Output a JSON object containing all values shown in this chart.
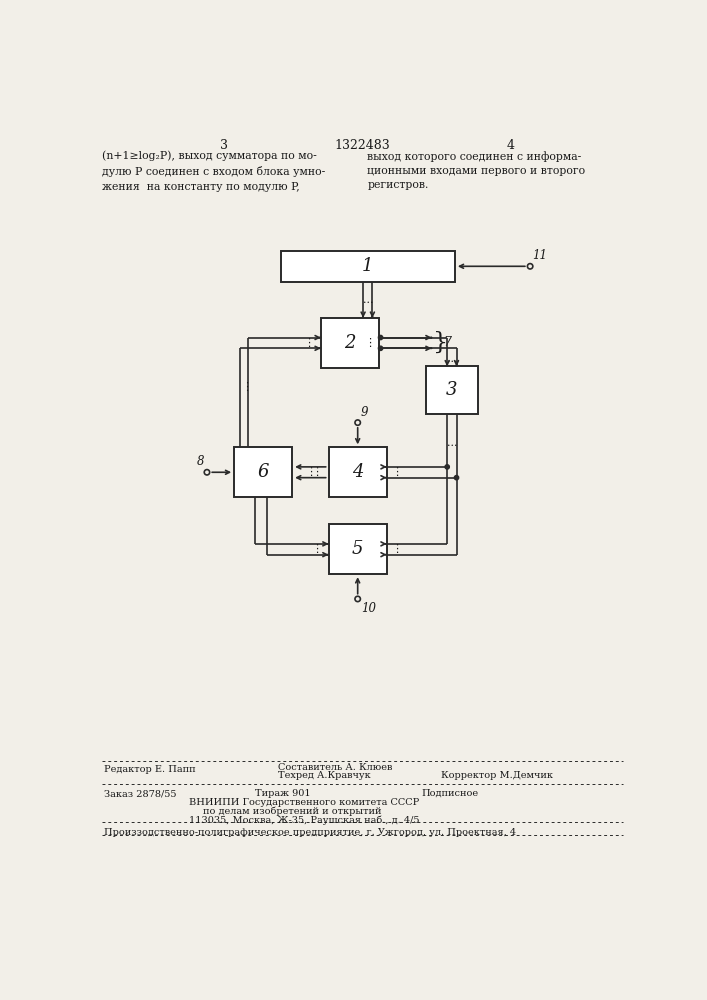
{
  "bg_color": "#f2efe8",
  "line_color": "#2a2a2a",
  "text_color": "#1a1a1a",
  "header_text_left": "(n+1≥log₂P), выход сумматора по мо-\nдулю P соединен с входом блока умно-\nжения  на константу по модулю P,",
  "header_text_right": "выход которого соединен с информа-\nционными входами первого и второго\nрегистров.",
  "page_num_left": "3",
  "page_num_center": "1322483",
  "page_num_right": "4",
  "footer_line1_left": "Редактор Е. Папп",
  "footer_line1_center": "Составитель А. Клюев",
  "footer_line2_center": "Техред А.Кравчук",
  "footer_line2_right": "Корректор М.Демчик",
  "footer_order": "Заказ 2878/55",
  "footer_tirazh": "Тираж 901",
  "footer_podpisnoe": "Подписное",
  "footer_vniiipi": "ВНИИПИ Государственного комитета СССР",
  "footer_po_delam": "по делам изобретений и открытий",
  "footer_address": "113035, Москва, Ж-35, Раушская наб., д. 4/5",
  "footer_production": "Произзодственно-полиграфическое предприятие, г. Ужгород, ул. Проектная, 4"
}
